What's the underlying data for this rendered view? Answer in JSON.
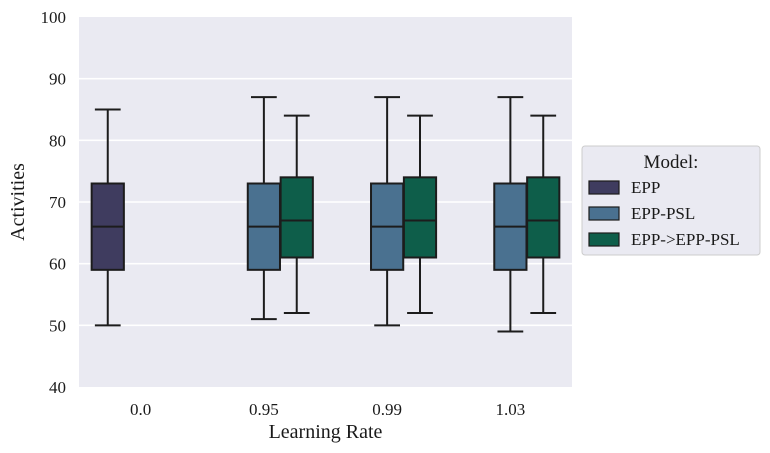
{
  "chart_data": {
    "type": "box",
    "xlabel": "Learning Rate",
    "ylabel": "Activities",
    "ylim": [
      40,
      100
    ],
    "yticks": [
      40,
      50,
      60,
      70,
      80,
      90,
      100
    ],
    "categories": [
      "0.0",
      "0.95",
      "0.99",
      "1.03"
    ],
    "grid": true,
    "background": "#eaeaf2",
    "legend": {
      "title": "Model:",
      "placement": "right",
      "entries": [
        "EPP",
        "EPP-PSL",
        "EPP->EPP-PSL"
      ]
    },
    "series": [
      {
        "name": "EPP",
        "color": "#3f3c5f",
        "boxes": [
          {
            "category": "0.0",
            "whisker_low": 50,
            "q1": 59,
            "median": 66,
            "q3": 73,
            "whisker_high": 85
          }
        ]
      },
      {
        "name": "EPP-PSL",
        "color": "#4a7190",
        "boxes": [
          {
            "category": "0.95",
            "whisker_low": 51,
            "q1": 59,
            "median": 66,
            "q3": 73,
            "whisker_high": 87
          },
          {
            "category": "0.99",
            "whisker_low": 50,
            "q1": 59,
            "median": 66,
            "q3": 73,
            "whisker_high": 87
          },
          {
            "category": "1.03",
            "whisker_low": 49,
            "q1": 59,
            "median": 66,
            "q3": 73,
            "whisker_high": 87
          }
        ]
      },
      {
        "name": "EPP->EPP-PSL",
        "color": "#0e5e4a",
        "boxes": [
          {
            "category": "0.95",
            "whisker_low": 52,
            "q1": 61,
            "median": 67,
            "q3": 74,
            "whisker_high": 84
          },
          {
            "category": "0.99",
            "whisker_low": 52,
            "q1": 61,
            "median": 67,
            "q3": 74,
            "whisker_high": 84
          },
          {
            "category": "1.03",
            "whisker_low": 52,
            "q1": 61,
            "median": 67,
            "q3": 74,
            "whisker_high": 84
          }
        ]
      }
    ]
  }
}
